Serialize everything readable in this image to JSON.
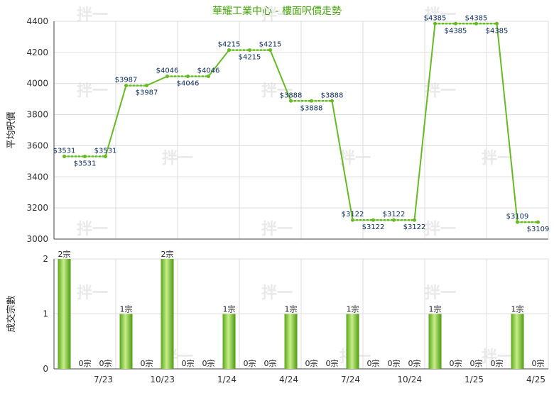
{
  "chart_data": [
    {
      "type": "line",
      "title": "華耀工業中心 - 樓面呎價走勢",
      "ylabel": "平均呎價",
      "ylim": [
        3000,
        4400
      ],
      "yticks": [
        3000,
        3200,
        3400,
        3600,
        3800,
        4000,
        4200,
        4400
      ],
      "grid": true,
      "value_prefix": "$",
      "values": [
        3531,
        3531,
        3531,
        3987,
        3987,
        4046,
        4046,
        4046,
        4215,
        4215,
        4215,
        3888,
        3888,
        3888,
        3122,
        3122,
        3122,
        3122,
        4385,
        4385,
        4385,
        4385,
        3109,
        3109
      ],
      "dotted_segments": [
        [
          0,
          2
        ],
        [
          3,
          4
        ],
        [
          5,
          7
        ],
        [
          8,
          10
        ],
        [
          11,
          13
        ],
        [
          14,
          17
        ],
        [
          18,
          21
        ],
        [
          22,
          23
        ]
      ],
      "line_color": "#66bb22"
    },
    {
      "type": "bar",
      "ylabel": "成交宗數",
      "ylim": [
        0,
        2
      ],
      "yticks": [
        0,
        1,
        2
      ],
      "value_suffix": "宗",
      "values": [
        2,
        0,
        0,
        1,
        0,
        2,
        0,
        0,
        1,
        0,
        0,
        1,
        0,
        0,
        1,
        0,
        0,
        0,
        1,
        0,
        0,
        0,
        1,
        0
      ],
      "xticks": [
        {
          "index": 2,
          "label": "7/23"
        },
        {
          "index": 5,
          "label": "10/23"
        },
        {
          "index": 8,
          "label": "1/24"
        },
        {
          "index": 11,
          "label": "4/24"
        },
        {
          "index": 14,
          "label": "7/24"
        },
        {
          "index": 17,
          "label": "10/24"
        },
        {
          "index": 20,
          "label": "1/25"
        },
        {
          "index": 23,
          "label": "4/25"
        }
      ]
    }
  ],
  "watermark": "拌一"
}
